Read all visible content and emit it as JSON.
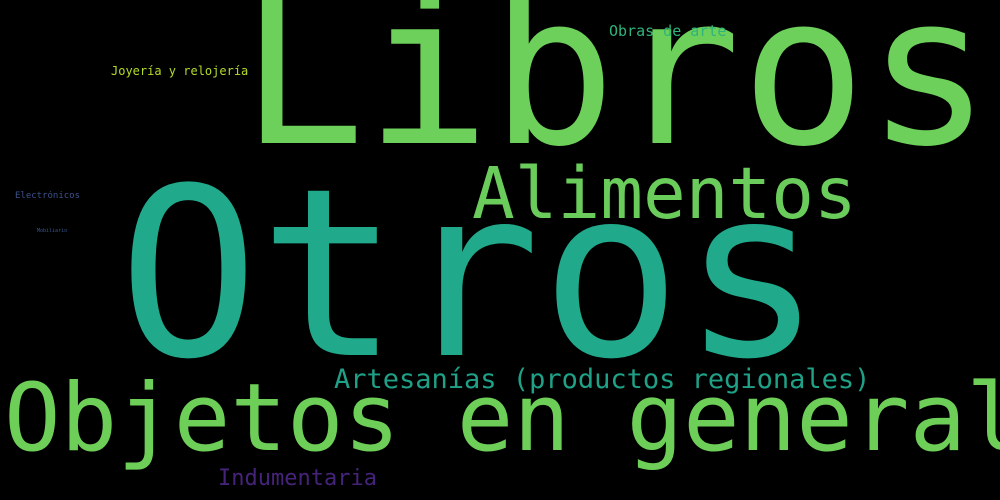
{
  "words": {
    "libros": {
      "text": "Libros",
      "color": "#6dd05a"
    },
    "otros": {
      "text": "Otros",
      "color": "#20a98a"
    },
    "objetos": {
      "text": "Objetos en general",
      "color": "#6ecf58"
    },
    "alimentos": {
      "text": "Alimentos",
      "color": "#6acd5b"
    },
    "artesanias": {
      "text": "Artesanías (productos regionales)",
      "color": "#1fa187"
    },
    "indumentaria": {
      "text": "Indumentaria",
      "color": "#46237a"
    },
    "obras": {
      "text": "Obras de arte",
      "color": "#2fb47c"
    },
    "joyeria": {
      "text": "Joyería y relojería",
      "color": "#b3db2a"
    },
    "electronicos": {
      "text": "Electrónicos",
      "color": "#3b528b"
    },
    "mobiliario": {
      "text": "Mobiliario",
      "color": "#39568c"
    }
  },
  "background": "#000000"
}
